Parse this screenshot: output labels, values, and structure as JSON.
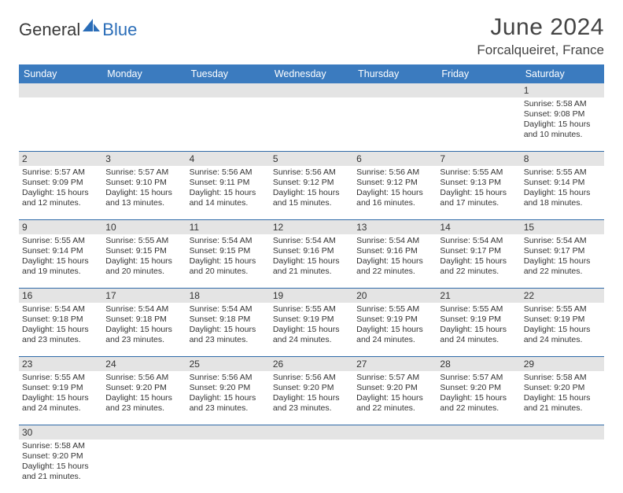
{
  "logo": {
    "part1": "General",
    "part2": "Blue"
  },
  "title": "June 2024",
  "location": "Forcalqueiret, France",
  "colors": {
    "header_bg": "#3b7bbf",
    "header_text": "#ffffff",
    "daynum_bg": "#e4e4e4",
    "row_border": "#2f6aa8",
    "text": "#333333",
    "logo_blue": "#2a6db8"
  },
  "day_headers": [
    "Sunday",
    "Monday",
    "Tuesday",
    "Wednesday",
    "Thursday",
    "Friday",
    "Saturday"
  ],
  "weeks": [
    {
      "nums": [
        "",
        "",
        "",
        "",
        "",
        "",
        "1"
      ],
      "cells": [
        "",
        "",
        "",
        "",
        "",
        "",
        "Sunrise: 5:58 AM\nSunset: 9:08 PM\nDaylight: 15 hours and 10 minutes."
      ]
    },
    {
      "nums": [
        "2",
        "3",
        "4",
        "5",
        "6",
        "7",
        "8"
      ],
      "cells": [
        "Sunrise: 5:57 AM\nSunset: 9:09 PM\nDaylight: 15 hours and 12 minutes.",
        "Sunrise: 5:57 AM\nSunset: 9:10 PM\nDaylight: 15 hours and 13 minutes.",
        "Sunrise: 5:56 AM\nSunset: 9:11 PM\nDaylight: 15 hours and 14 minutes.",
        "Sunrise: 5:56 AM\nSunset: 9:12 PM\nDaylight: 15 hours and 15 minutes.",
        "Sunrise: 5:56 AM\nSunset: 9:12 PM\nDaylight: 15 hours and 16 minutes.",
        "Sunrise: 5:55 AM\nSunset: 9:13 PM\nDaylight: 15 hours and 17 minutes.",
        "Sunrise: 5:55 AM\nSunset: 9:14 PM\nDaylight: 15 hours and 18 minutes."
      ]
    },
    {
      "nums": [
        "9",
        "10",
        "11",
        "12",
        "13",
        "14",
        "15"
      ],
      "cells": [
        "Sunrise: 5:55 AM\nSunset: 9:14 PM\nDaylight: 15 hours and 19 minutes.",
        "Sunrise: 5:55 AM\nSunset: 9:15 PM\nDaylight: 15 hours and 20 minutes.",
        "Sunrise: 5:54 AM\nSunset: 9:15 PM\nDaylight: 15 hours and 20 minutes.",
        "Sunrise: 5:54 AM\nSunset: 9:16 PM\nDaylight: 15 hours and 21 minutes.",
        "Sunrise: 5:54 AM\nSunset: 9:16 PM\nDaylight: 15 hours and 22 minutes.",
        "Sunrise: 5:54 AM\nSunset: 9:17 PM\nDaylight: 15 hours and 22 minutes.",
        "Sunrise: 5:54 AM\nSunset: 9:17 PM\nDaylight: 15 hours and 22 minutes."
      ]
    },
    {
      "nums": [
        "16",
        "17",
        "18",
        "19",
        "20",
        "21",
        "22"
      ],
      "cells": [
        "Sunrise: 5:54 AM\nSunset: 9:18 PM\nDaylight: 15 hours and 23 minutes.",
        "Sunrise: 5:54 AM\nSunset: 9:18 PM\nDaylight: 15 hours and 23 minutes.",
        "Sunrise: 5:54 AM\nSunset: 9:18 PM\nDaylight: 15 hours and 23 minutes.",
        "Sunrise: 5:55 AM\nSunset: 9:19 PM\nDaylight: 15 hours and 24 minutes.",
        "Sunrise: 5:55 AM\nSunset: 9:19 PM\nDaylight: 15 hours and 24 minutes.",
        "Sunrise: 5:55 AM\nSunset: 9:19 PM\nDaylight: 15 hours and 24 minutes.",
        "Sunrise: 5:55 AM\nSunset: 9:19 PM\nDaylight: 15 hours and 24 minutes."
      ]
    },
    {
      "nums": [
        "23",
        "24",
        "25",
        "26",
        "27",
        "28",
        "29"
      ],
      "cells": [
        "Sunrise: 5:55 AM\nSunset: 9:19 PM\nDaylight: 15 hours and 24 minutes.",
        "Sunrise: 5:56 AM\nSunset: 9:20 PM\nDaylight: 15 hours and 23 minutes.",
        "Sunrise: 5:56 AM\nSunset: 9:20 PM\nDaylight: 15 hours and 23 minutes.",
        "Sunrise: 5:56 AM\nSunset: 9:20 PM\nDaylight: 15 hours and 23 minutes.",
        "Sunrise: 5:57 AM\nSunset: 9:20 PM\nDaylight: 15 hours and 22 minutes.",
        "Sunrise: 5:57 AM\nSunset: 9:20 PM\nDaylight: 15 hours and 22 minutes.",
        "Sunrise: 5:58 AM\nSunset: 9:20 PM\nDaylight: 15 hours and 21 minutes."
      ]
    },
    {
      "nums": [
        "30",
        "",
        "",
        "",
        "",
        "",
        ""
      ],
      "cells": [
        "Sunrise: 5:58 AM\nSunset: 9:20 PM\nDaylight: 15 hours and 21 minutes.",
        "",
        "",
        "",
        "",
        "",
        ""
      ]
    }
  ]
}
